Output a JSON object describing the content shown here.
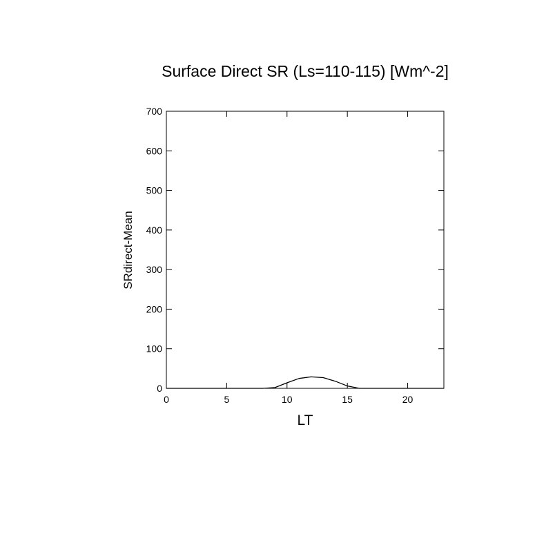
{
  "chart_data": {
    "type": "line",
    "title": "Surface Direct SR (Ls=110-115) [Wm^-2]",
    "x_label": "LT",
    "y_label": "SRdirect-Mean",
    "x": [
      0,
      1,
      2,
      3,
      4,
      5,
      6,
      7,
      8,
      9,
      10,
      11,
      12,
      13,
      14,
      15,
      16,
      17,
      18,
      19,
      20,
      21,
      22,
      23
    ],
    "series": [
      {
        "color": "#000000",
        "values": [
          0,
          0,
          0,
          0,
          0,
          0,
          0,
          0,
          0,
          2,
          14,
          25,
          29,
          27,
          18,
          6,
          0,
          0,
          0,
          0,
          0,
          0,
          0,
          0
        ]
      }
    ],
    "xlim": [
      0,
      23
    ],
    "xticks": [
      0,
      5,
      10,
      15,
      20
    ],
    "ylim": [
      0,
      700
    ],
    "yticks": [
      0,
      100,
      200,
      300,
      400,
      500,
      600,
      700
    ]
  }
}
